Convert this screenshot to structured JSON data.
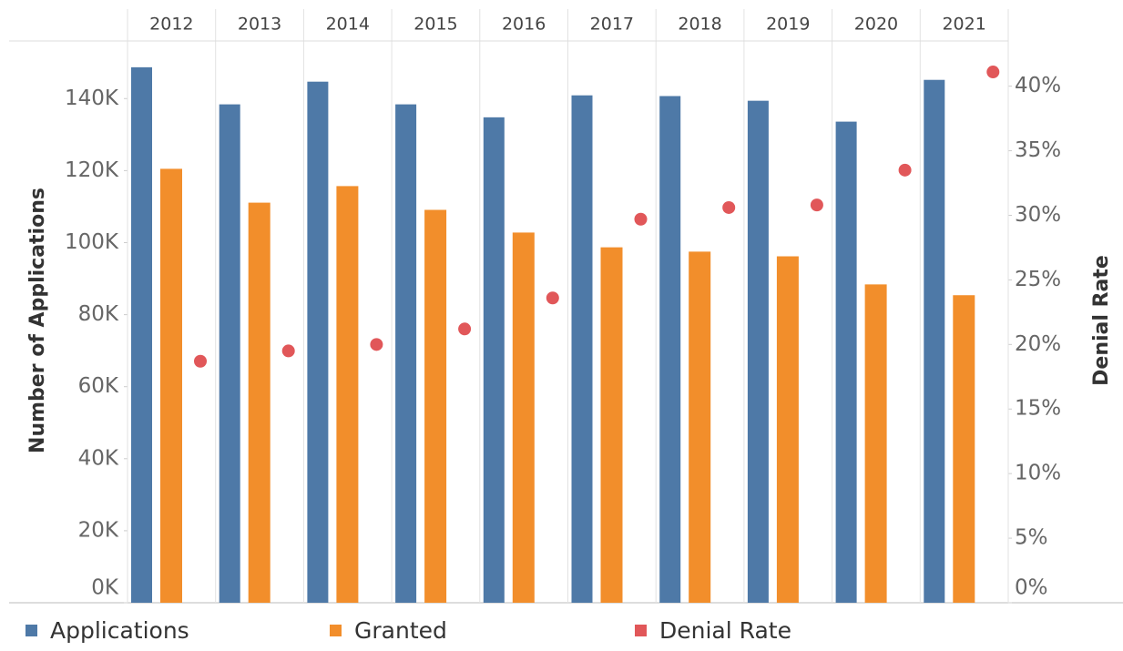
{
  "chart_data": {
    "type": "bar",
    "categories": [
      "2012",
      "2013",
      "2014",
      "2015",
      "2016",
      "2017",
      "2018",
      "2019",
      "2020",
      "2021"
    ],
    "y_label": "Number of Applications",
    "y2_label": "Denial Rate",
    "ylim": [
      0,
      156000
    ],
    "yticks": [
      {
        "value": 0,
        "label": "0K"
      },
      {
        "value": 20000,
        "label": "20K"
      },
      {
        "value": 40000,
        "label": "40K"
      },
      {
        "value": 60000,
        "label": "60K"
      },
      {
        "value": 80000,
        "label": "80K"
      },
      {
        "value": 100000,
        "label": "100K"
      },
      {
        "value": 120000,
        "label": "120K"
      },
      {
        "value": 140000,
        "label": "140K"
      }
    ],
    "y2lim": [
      0,
      43.5
    ],
    "y2ticks": [
      {
        "value": 0,
        "label": "0%"
      },
      {
        "value": 5,
        "label": "5%"
      },
      {
        "value": 10,
        "label": "10%"
      },
      {
        "value": 15,
        "label": "15%"
      },
      {
        "value": 20,
        "label": "20%"
      },
      {
        "value": 25,
        "label": "25%"
      },
      {
        "value": 30,
        "label": "30%"
      },
      {
        "value": 35,
        "label": "35%"
      },
      {
        "value": 40,
        "label": "40%"
      }
    ],
    "legend": "bottom",
    "series": [
      {
        "name": "Applications",
        "color": "#4e79a7",
        "values": [
          148700,
          138400,
          144700,
          138400,
          134800,
          140900,
          140700,
          139400,
          133600,
          145200
        ]
      },
      {
        "name": "Granted",
        "color": "#f28e2b",
        "values": [
          120500,
          111100,
          115700,
          109100,
          102800,
          98700,
          97500,
          96200,
          88400,
          85400
        ]
      },
      {
        "name": "Denial Rate",
        "color": "#e15759",
        "type": "scatter",
        "axis": "y2",
        "values": [
          18.7,
          19.5,
          20.0,
          21.2,
          23.6,
          29.7,
          30.6,
          30.8,
          33.5,
          41.1
        ]
      }
    ]
  }
}
